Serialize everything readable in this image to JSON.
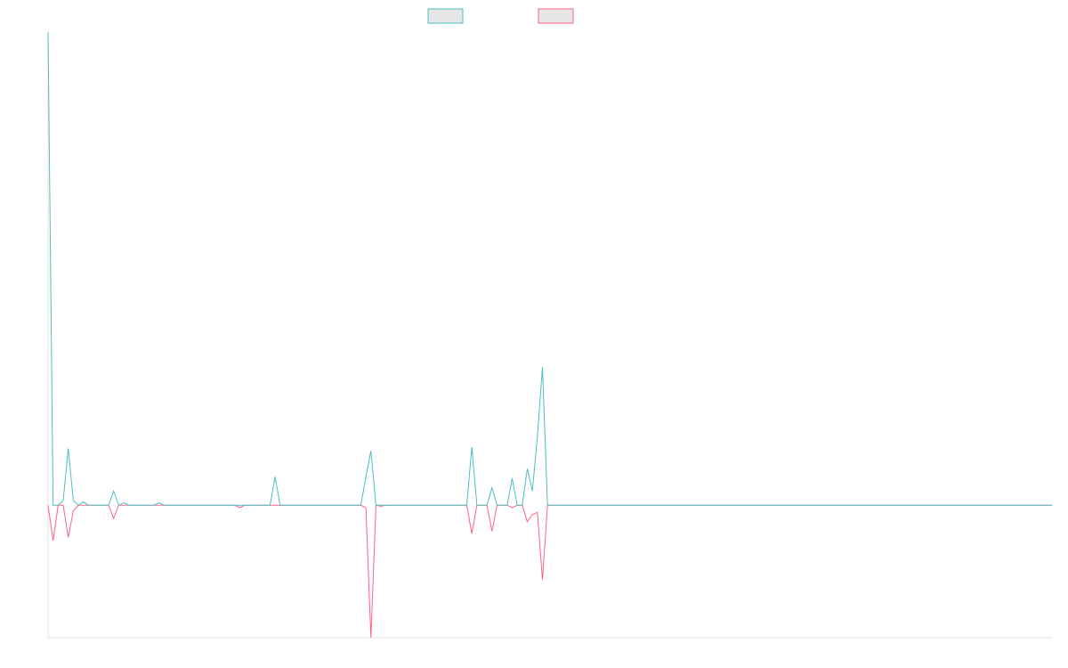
{
  "chart_data": {
    "type": "line",
    "title": "",
    "xlabel": "",
    "ylabel": "",
    "legend": {
      "position": "top-center",
      "labels_shown": false
    },
    "grid": false,
    "ylim": [
      -0.28,
      1.0
    ],
    "xlim": [
      0,
      199
    ],
    "colors": {
      "up": "#4bc0c0",
      "down": "#ff6384",
      "legend_fill": "#e6e6e6",
      "axis": "#e2e2e2"
    },
    "series": [
      {
        "key": "up",
        "color": "#4bc0c0",
        "points": [
          [
            0,
            1.0
          ],
          [
            1,
            0.0
          ],
          [
            2,
            0.0
          ],
          [
            3,
            0.01
          ],
          [
            4,
            0.12
          ],
          [
            5,
            0.01
          ],
          [
            6,
            0.0
          ],
          [
            7,
            0.007
          ],
          [
            8,
            0.0
          ],
          [
            9,
            0.0
          ],
          [
            10,
            0.0
          ],
          [
            11,
            0.0
          ],
          [
            12,
            0.0
          ],
          [
            13,
            0.03
          ],
          [
            14,
            0.0
          ],
          [
            15,
            0.005
          ],
          [
            16,
            0.0
          ],
          [
            17,
            0.0
          ],
          [
            18,
            0.0
          ],
          [
            19,
            0.0
          ],
          [
            20,
            0.0
          ],
          [
            21,
            0.0
          ],
          [
            22,
            0.005
          ],
          [
            23,
            0.0
          ],
          [
            36,
            0.0
          ],
          [
            37,
            0.0
          ],
          [
            38,
            0.0
          ],
          [
            39,
            0.0
          ],
          [
            43,
            0.0
          ],
          [
            44,
            0.0
          ],
          [
            45,
            0.06
          ],
          [
            46,
            0.0
          ],
          [
            61,
            0.0
          ],
          [
            62,
            0.0
          ],
          [
            63,
            0.06
          ],
          [
            64,
            0.115
          ],
          [
            65,
            0.0
          ],
          [
            66,
            0.0
          ],
          [
            67,
            0.0
          ],
          [
            82,
            0.0
          ],
          [
            83,
            0.0
          ],
          [
            84,
            0.123
          ],
          [
            85,
            0.0
          ],
          [
            86,
            0.0
          ],
          [
            87,
            0.0
          ],
          [
            88,
            0.037
          ],
          [
            89,
            0.0
          ],
          [
            90,
            0.0
          ],
          [
            91,
            0.0
          ],
          [
            92,
            0.057
          ],
          [
            93,
            0.0
          ],
          [
            94,
            0.0
          ],
          [
            95,
            0.077
          ],
          [
            96,
            0.03
          ],
          [
            97,
            0.145
          ],
          [
            98,
            0.292
          ],
          [
            99,
            0.0
          ],
          [
            100,
            0.0
          ],
          [
            199,
            0.0
          ]
        ]
      },
      {
        "key": "down",
        "color": "#ff6384",
        "points": [
          [
            0,
            0.0
          ],
          [
            1,
            -0.075
          ],
          [
            2,
            0.0
          ],
          [
            3,
            0.0
          ],
          [
            4,
            -0.068
          ],
          [
            5,
            -0.012
          ],
          [
            6,
            0.0
          ],
          [
            7,
            0.0
          ],
          [
            8,
            0.0
          ],
          [
            9,
            0.0
          ],
          [
            10,
            0.0
          ],
          [
            11,
            0.0
          ],
          [
            12,
            0.0
          ],
          [
            13,
            -0.028
          ],
          [
            14,
            0.0
          ],
          [
            15,
            0.0
          ],
          [
            16,
            0.0
          ],
          [
            17,
            0.0
          ],
          [
            18,
            0.0
          ],
          [
            19,
            0.0
          ],
          [
            20,
            0.0
          ],
          [
            21,
            0.0
          ],
          [
            22,
            0.0
          ],
          [
            23,
            0.0
          ],
          [
            36,
            0.0
          ],
          [
            37,
            0.0
          ],
          [
            38,
            -0.005
          ],
          [
            39,
            0.0
          ],
          [
            43,
            0.0
          ],
          [
            44,
            0.0
          ],
          [
            45,
            0.0
          ],
          [
            46,
            0.0
          ],
          [
            61,
            0.0
          ],
          [
            62,
            0.0
          ],
          [
            63,
            -0.005
          ],
          [
            64,
            -0.28
          ],
          [
            65,
            0.0
          ],
          [
            66,
            -0.002
          ],
          [
            67,
            0.0
          ],
          [
            82,
            0.0
          ],
          [
            83,
            0.0
          ],
          [
            84,
            -0.06
          ],
          [
            85,
            0.0
          ],
          [
            86,
            0.0
          ],
          [
            87,
            0.0
          ],
          [
            88,
            -0.055
          ],
          [
            89,
            0.0
          ],
          [
            90,
            0.0
          ],
          [
            91,
            0.0
          ],
          [
            92,
            -0.005
          ],
          [
            93,
            0.0
          ],
          [
            94,
            0.0
          ],
          [
            95,
            -0.035
          ],
          [
            96,
            -0.02
          ],
          [
            97,
            -0.015
          ],
          [
            98,
            -0.157
          ],
          [
            99,
            0.0
          ],
          [
            100,
            0.0
          ],
          [
            199,
            0.0
          ]
        ]
      }
    ]
  }
}
